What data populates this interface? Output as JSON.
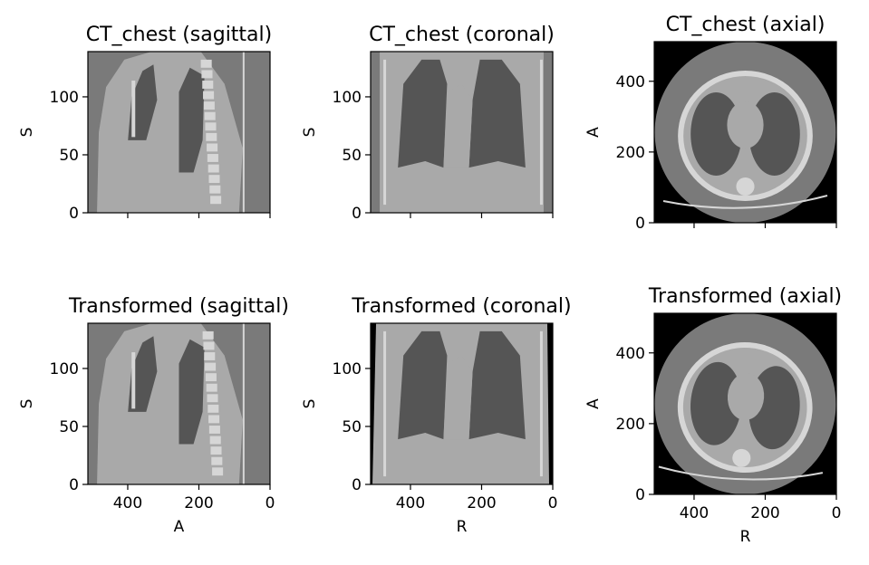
{
  "chart_data": [
    {
      "type": "image",
      "title": "CT_chest (sagittal)",
      "xlabel": "",
      "ylabel": "S",
      "xlim": [
        512,
        0
      ],
      "ylim": [
        0,
        139
      ],
      "xticks": [],
      "yticks": [
        0,
        50,
        100
      ],
      "view": "sagittal"
    },
    {
      "type": "image",
      "title": "CT_chest (coronal)",
      "xlabel": "",
      "ylabel": "S",
      "xlim": [
        512,
        0
      ],
      "ylim": [
        0,
        139
      ],
      "xticks": [],
      "yticks": [
        0,
        50,
        100
      ],
      "view": "coronal"
    },
    {
      "type": "image",
      "title": "CT_chest (axial)",
      "xlabel": "",
      "ylabel": "A",
      "xlim": [
        512,
        0
      ],
      "ylim": [
        0,
        512
      ],
      "xticks": [],
      "yticks": [
        0,
        200,
        400
      ],
      "view": "axial"
    },
    {
      "type": "image",
      "title": "Transformed (sagittal)",
      "xlabel": "A",
      "ylabel": "S",
      "xlim": [
        512,
        0
      ],
      "ylim": [
        0,
        139
      ],
      "xticks": [
        400,
        200,
        0
      ],
      "yticks": [
        0,
        50,
        100
      ],
      "view": "sagittal"
    },
    {
      "type": "image",
      "title": "Transformed (coronal)",
      "xlabel": "R",
      "ylabel": "S",
      "xlim": [
        512,
        0
      ],
      "ylim": [
        0,
        139
      ],
      "xticks": [
        400,
        200,
        0
      ],
      "yticks": [
        0,
        50,
        100
      ],
      "view": "coronal"
    },
    {
      "type": "image",
      "title": "Transformed (axial)",
      "xlabel": "R",
      "ylabel": "A",
      "xlim": [
        512,
        0
      ],
      "ylim": [
        0,
        512
      ],
      "xticks": [
        400,
        200,
        0
      ],
      "yticks": [
        0,
        200,
        400
      ],
      "view": "axial"
    }
  ],
  "colors": {
    "soft_tissue": "#a9a9a9",
    "lung": "#555555",
    "background_tissue": "#7a7a7a",
    "air": "#000000",
    "bone": "#d6d6d6"
  }
}
